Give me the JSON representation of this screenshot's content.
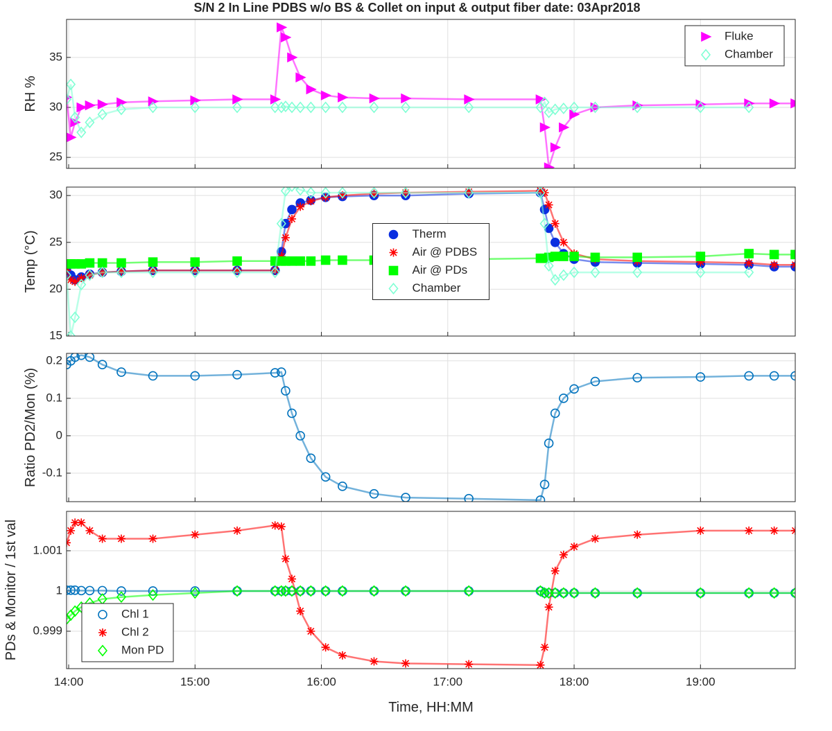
{
  "chart_data": [
    {
      "type": "scatter",
      "title": "S/N 2 In Line PDBS w/o BS & Collet on input & output fiber date: 03Apr2018",
      "ylabel": "RH %",
      "grid": true,
      "legend": "northeast",
      "x": [
        839,
        841,
        843,
        846,
        850,
        856,
        865,
        880,
        900,
        920,
        938,
        941,
        943,
        946,
        950,
        955,
        962,
        970,
        985,
        1000,
        1030,
        1064,
        1066,
        1068,
        1071,
        1075,
        1080,
        1090,
        1110,
        1140,
        1163,
        1175,
        1185
      ],
      "xlim": [
        839,
        1185
      ],
      "xticks": [
        840,
        900,
        960,
        1020,
        1080,
        1140
      ],
      "ylim": [
        23.9,
        38.8
      ],
      "yticks": [
        25,
        30,
        35
      ],
      "series": [
        {
          "name": "Fluke",
          "color": "#ff00ff",
          "marker": "triangle",
          "filled": true,
          "values": [
            31,
            27,
            28.5,
            30,
            30.2,
            30.3,
            30.5,
            30.6,
            30.7,
            30.8,
            30.8,
            38,
            37,
            35,
            33,
            31.8,
            31.2,
            31,
            30.9,
            30.9,
            30.8,
            30.8,
            28,
            24,
            26,
            28,
            29.3,
            30,
            30.2,
            30.3,
            30.4,
            30.4,
            30.4
          ]
        },
        {
          "name": "Chamber",
          "color": "#7fffd4",
          "marker": "diamond",
          "filled": false,
          "values": [
            30.8,
            32.3,
            29,
            27.5,
            28.5,
            29.3,
            29.8,
            30,
            30,
            30,
            30,
            30,
            30.1,
            30,
            30,
            30,
            30,
            30,
            30,
            30,
            30,
            30,
            30.5,
            29.5,
            29.8,
            29.9,
            30,
            30,
            30,
            30,
            30,
            null,
            null
          ]
        }
      ]
    },
    {
      "type": "scatter",
      "ylabel": "Temp (°C)",
      "grid": true,
      "legend": "center",
      "x": [
        839,
        841,
        843,
        846,
        850,
        856,
        865,
        880,
        900,
        920,
        938,
        941,
        943,
        946,
        950,
        955,
        962,
        970,
        985,
        1000,
        1030,
        1064,
        1066,
        1068,
        1071,
        1075,
        1080,
        1090,
        1110,
        1140,
        1163,
        1175,
        1185
      ],
      "xlim": [
        839,
        1185
      ],
      "xticks": [
        840,
        900,
        960,
        1020,
        1080,
        1140
      ],
      "ylim": [
        15,
        30.9
      ],
      "yticks": [
        15,
        20,
        25,
        30
      ],
      "series": [
        {
          "name": "Therm",
          "color": "#0a2ee0",
          "marker": "circle",
          "filled": true,
          "values": [
            22,
            21.5,
            21,
            21.3,
            21.6,
            21.8,
            21.9,
            22,
            22,
            22,
            22,
            24,
            27,
            28.5,
            29.2,
            29.5,
            29.8,
            29.9,
            30,
            30,
            30.2,
            30.3,
            28.5,
            26.5,
            25,
            23.8,
            23.2,
            22.9,
            22.8,
            22.7,
            22.6,
            22.4,
            22.4
          ]
        },
        {
          "name": "Air @ PDBS",
          "color": "#ff0000",
          "marker": "asterisk",
          "filled": false,
          "values": [
            22,
            21,
            20.8,
            21.2,
            21.5,
            21.8,
            21.9,
            22,
            22,
            22,
            22,
            23.5,
            25.5,
            27.5,
            28.8,
            29.4,
            29.8,
            30,
            30.2,
            30.3,
            30.4,
            30.5,
            30.3,
            29,
            27,
            25,
            23.8,
            23.2,
            23,
            22.9,
            22.8,
            22.6,
            22.6
          ]
        },
        {
          "name": "Air @ PDs",
          "color": "#00ff00",
          "marker": "square",
          "filled": true,
          "values": [
            22.7,
            22.7,
            22.7,
            22.7,
            22.8,
            22.8,
            22.8,
            22.9,
            22.9,
            23,
            23,
            23,
            23,
            23,
            23,
            23,
            23.1,
            23.1,
            23.1,
            23.2,
            23.2,
            23.3,
            23.3,
            23.4,
            23.5,
            23.5,
            23.5,
            23.4,
            23.4,
            23.5,
            23.8,
            23.7,
            23.7
          ]
        },
        {
          "name": "Chamber",
          "color": "#7fffd4",
          "marker": "diamond",
          "filled": false,
          "values": [
            21.5,
            15,
            17,
            20.5,
            21.5,
            21.8,
            21.8,
            21.8,
            21.8,
            21.8,
            21.8,
            27,
            30.5,
            31,
            30.6,
            30.3,
            30.3,
            30.3,
            30.3,
            30.3,
            30.3,
            30.3,
            27,
            22.5,
            21,
            21.5,
            21.8,
            21.8,
            21.8,
            21.8,
            21.8,
            null,
            null
          ]
        }
      ]
    },
    {
      "type": "scatter",
      "ylabel": "Ratio PD2/Mon (%)",
      "grid": true,
      "x": [
        839,
        841,
        843,
        846,
        850,
        856,
        865,
        880,
        900,
        920,
        938,
        941,
        943,
        946,
        950,
        955,
        962,
        970,
        985,
        1000,
        1030,
        1064,
        1066,
        1068,
        1071,
        1075,
        1080,
        1090,
        1110,
        1140,
        1163,
        1175,
        1185
      ],
      "xlim": [
        839,
        1185
      ],
      "xticks": [
        840,
        900,
        960,
        1020,
        1080,
        1140
      ],
      "ylim": [
        -0.176,
        0.22
      ],
      "yticks": [
        -0.1,
        0,
        0.1,
        0.2
      ],
      "series": [
        {
          "color": "#0072bd",
          "marker": "circle",
          "filled": false,
          "values": [
            0.19,
            0.2,
            0.21,
            0.215,
            0.21,
            0.19,
            0.17,
            0.16,
            0.16,
            0.163,
            0.168,
            0.17,
            0.12,
            0.06,
            0,
            -0.06,
            -0.11,
            -0.135,
            -0.155,
            -0.165,
            -0.168,
            -0.172,
            -0.13,
            -0.02,
            0.06,
            0.1,
            0.125,
            0.145,
            0.155,
            0.157,
            0.16,
            0.16,
            0.16
          ]
        }
      ]
    },
    {
      "type": "scatter",
      "ylabel": "PDs & Monitor / 1st val",
      "xlabel": "Time, HH:MM",
      "grid": true,
      "legend": "southwest",
      "x": [
        839,
        841,
        843,
        846,
        850,
        856,
        865,
        880,
        900,
        920,
        938,
        941,
        943,
        946,
        950,
        955,
        962,
        970,
        985,
        1000,
        1030,
        1064,
        1066,
        1068,
        1071,
        1075,
        1080,
        1090,
        1110,
        1140,
        1163,
        1175,
        1185
      ],
      "xlim": [
        839,
        1185
      ],
      "xticks": [
        {
          "value": 840,
          "label": "14:00"
        },
        {
          "value": 900,
          "label": "15:00"
        },
        {
          "value": 960,
          "label": "16:00"
        },
        {
          "value": 1020,
          "label": "17:00"
        },
        {
          "value": 1080,
          "label": "18:00"
        },
        {
          "value": 1140,
          "label": "19:00"
        }
      ],
      "ylim": [
        0.99807,
        1.00198
      ],
      "yticks": [
        0.999,
        1,
        1.001
      ],
      "series": [
        {
          "name": "Chl 1",
          "color": "#0072bd",
          "marker": "circle",
          "filled": false,
          "values": [
            1.00002,
            1.00002,
            1.00002,
            1.00001,
            1.00001,
            1.00001,
            1,
            1,
            1,
            1,
            1,
            1,
            1,
            1,
            1,
            1,
            1,
            1,
            1,
            1,
            1,
            1,
            0.99995,
            0.99995,
            0.99995,
            0.99995,
            0.99995,
            0.99995,
            0.99995,
            0.99995,
            0.99995,
            0.99995,
            0.99995
          ]
        },
        {
          "name": "Chl 2",
          "color": "#ff0000",
          "marker": "asterisk",
          "filled": false,
          "values": [
            1.0012,
            1.0015,
            1.0017,
            1.0017,
            1.0015,
            1.0013,
            1.0013,
            1.0013,
            1.0014,
            1.0015,
            1.00163,
            1.0016,
            1.0008,
            1.0003,
            0.9995,
            0.999,
            0.9986,
            0.9984,
            0.99825,
            0.9982,
            0.99818,
            0.99816,
            0.9986,
            0.9996,
            1.0005,
            1.0009,
            1.0011,
            1.0013,
            1.0014,
            1.0015,
            1.0015,
            1.0015,
            1.0015
          ]
        },
        {
          "name": "Mon PD",
          "color": "#00ff00",
          "marker": "diamond",
          "filled": false,
          "values": [
            0.9993,
            0.9994,
            0.9995,
            0.9996,
            0.9997,
            0.9998,
            0.99985,
            0.9999,
            0.99995,
            1,
            1,
            1,
            1,
            1,
            1,
            1,
            1,
            1,
            1,
            1,
            1,
            1,
            0.99995,
            0.99995,
            0.99995,
            0.99995,
            0.99995,
            0.99995,
            0.99995,
            0.99995,
            0.99995,
            0.99995,
            0.99995
          ]
        }
      ]
    }
  ]
}
